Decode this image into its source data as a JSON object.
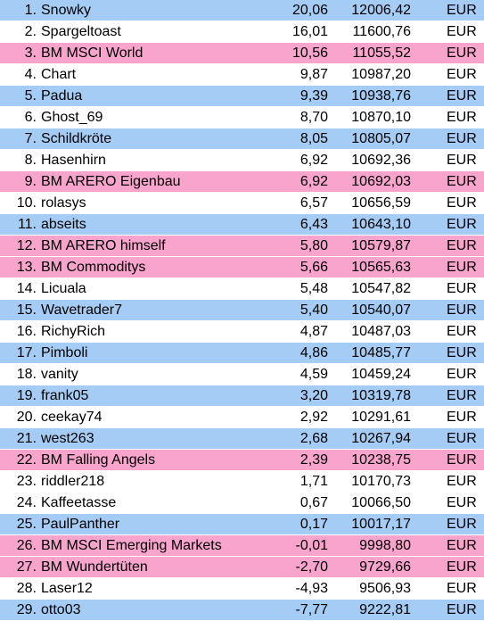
{
  "colors": {
    "blue": "#a4ccf4",
    "white": "#ffffff",
    "pink": "#f8a4cc"
  },
  "rows": [
    {
      "rank": "1.",
      "name": "Snowky",
      "pct": "20,06",
      "value": "12006,42",
      "currency": "EUR",
      "color": "blue"
    },
    {
      "rank": "2.",
      "name": "Spargeltoast",
      "pct": "16,01",
      "value": "11600,76",
      "currency": "EUR",
      "color": "white"
    },
    {
      "rank": "3.",
      "name": "BM MSCI World",
      "pct": "10,56",
      "value": "11055,52",
      "currency": "EUR",
      "color": "pink"
    },
    {
      "rank": "4.",
      "name": "Chart",
      "pct": "9,87",
      "value": "10987,20",
      "currency": "EUR",
      "color": "white"
    },
    {
      "rank": "5.",
      "name": "Padua",
      "pct": "9,39",
      "value": "10938,76",
      "currency": "EUR",
      "color": "blue"
    },
    {
      "rank": "6.",
      "name": "Ghost_69",
      "pct": "8,70",
      "value": "10870,10",
      "currency": "EUR",
      "color": "white"
    },
    {
      "rank": "7.",
      "name": "Schildkröte",
      "pct": "8,05",
      "value": "10805,07",
      "currency": "EUR",
      "color": "blue"
    },
    {
      "rank": "8.",
      "name": "Hasenhirn",
      "pct": "6,92",
      "value": "10692,36",
      "currency": "EUR",
      "color": "white"
    },
    {
      "rank": "9.",
      "name": "BM ARERO Eigenbau",
      "pct": "6,92",
      "value": "10692,03",
      "currency": "EUR",
      "color": "pink"
    },
    {
      "rank": "10.",
      "name": "rolasys",
      "pct": "6,57",
      "value": "10656,59",
      "currency": "EUR",
      "color": "white"
    },
    {
      "rank": "11.",
      "name": "abseits",
      "pct": "6,43",
      "value": "10643,10",
      "currency": "EUR",
      "color": "blue"
    },
    {
      "rank": "12.",
      "name": "BM ARERO himself",
      "pct": "5,80",
      "value": "10579,87",
      "currency": "EUR",
      "color": "pink"
    },
    {
      "rank": "13.",
      "name": "BM Commoditys",
      "pct": "5,66",
      "value": "10565,63",
      "currency": "EUR",
      "color": "pink"
    },
    {
      "rank": "14.",
      "name": "Licuala",
      "pct": "5,48",
      "value": "10547,82",
      "currency": "EUR",
      "color": "white"
    },
    {
      "rank": "15.",
      "name": "Wavetrader7",
      "pct": "5,40",
      "value": "10540,07",
      "currency": "EUR",
      "color": "blue"
    },
    {
      "rank": "16.",
      "name": "RichyRich",
      "pct": "4,87",
      "value": "10487,03",
      "currency": "EUR",
      "color": "white"
    },
    {
      "rank": "17.",
      "name": "Pimboli",
      "pct": "4,86",
      "value": "10485,77",
      "currency": "EUR",
      "color": "blue"
    },
    {
      "rank": "18.",
      "name": "vanity",
      "pct": "4,59",
      "value": "10459,24",
      "currency": "EUR",
      "color": "white"
    },
    {
      "rank": "19.",
      "name": "frank05",
      "pct": "3,20",
      "value": "10319,78",
      "currency": "EUR",
      "color": "blue"
    },
    {
      "rank": "20.",
      "name": "ceekay74",
      "pct": "2,92",
      "value": "10291,61",
      "currency": "EUR",
      "color": "white"
    },
    {
      "rank": "21.",
      "name": "west263",
      "pct": "2,68",
      "value": "10267,94",
      "currency": "EUR",
      "color": "blue"
    },
    {
      "rank": "22.",
      "name": "BM Falling Angels",
      "pct": "2,39",
      "value": "10238,75",
      "currency": "EUR",
      "color": "pink"
    },
    {
      "rank": "23.",
      "name": "riddler218",
      "pct": "1,71",
      "value": "10170,73",
      "currency": "EUR",
      "color": "white"
    },
    {
      "rank": "24.",
      "name": "Kaffeetasse",
      "pct": "0,67",
      "value": "10066,50",
      "currency": "EUR",
      "color": "white"
    },
    {
      "rank": "25.",
      "name": "PaulPanther",
      "pct": "0,17",
      "value": "10017,17",
      "currency": "EUR",
      "color": "blue"
    },
    {
      "rank": "26.",
      "name": "BM MSCI Emerging Markets",
      "pct": "-0,01",
      "value": "9998,80",
      "currency": "EUR",
      "color": "pink"
    },
    {
      "rank": "27.",
      "name": "BM Wundertüten",
      "pct": "-2,70",
      "value": "9729,66",
      "currency": "EUR",
      "color": "pink"
    },
    {
      "rank": "28.",
      "name": "Laser12",
      "pct": "-4,93",
      "value": "9506,93",
      "currency": "EUR",
      "color": "white"
    },
    {
      "rank": "29.",
      "name": "otto03",
      "pct": "-7,77",
      "value": "9222,81",
      "currency": "EUR",
      "color": "blue"
    }
  ]
}
